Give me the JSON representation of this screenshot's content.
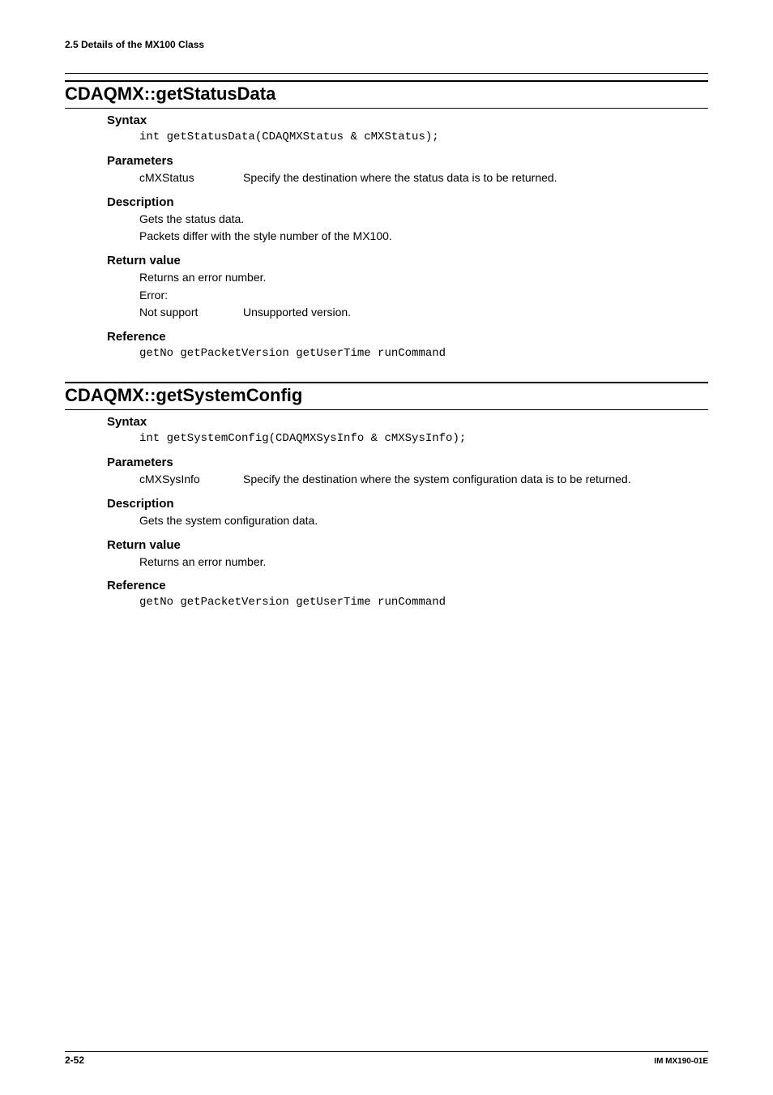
{
  "header": {
    "breadcrumb": "2.5  Details of the MX100 Class"
  },
  "sections": [
    {
      "title": "CDAQMX::getStatusData",
      "syntax": {
        "label": "Syntax",
        "code": "int getStatusData(CDAQMXStatus & cMXStatus);"
      },
      "parameters": {
        "label": "Parameters",
        "rows": [
          {
            "key": "cMXStatus",
            "val": "Specify the destination where the status data is to be returned."
          }
        ]
      },
      "description": {
        "label": "Description",
        "lines": [
          "Gets the status data.",
          "Packets differ with the style number of the MX100."
        ]
      },
      "return": {
        "label": "Return value",
        "lines": [
          "Returns an error number.",
          "Error:"
        ],
        "rows": [
          {
            "key": "Not support",
            "val": "Unsupported version."
          }
        ]
      },
      "reference": {
        "label": "Reference",
        "code": "getNo getPacketVersion getUserTime runCommand"
      }
    },
    {
      "title": "CDAQMX::getSystemConfig",
      "syntax": {
        "label": "Syntax",
        "code": "int getSystemConfig(CDAQMXSysInfo & cMXSysInfo);"
      },
      "parameters": {
        "label": "Parameters",
        "rows": [
          {
            "key": "cMXSysInfo",
            "val": "Specify the destination where the system configuration data is to be returned."
          }
        ]
      },
      "description": {
        "label": "Description",
        "lines": [
          "Gets the system configuration data."
        ]
      },
      "return": {
        "label": "Return value",
        "lines": [
          "Returns an error number."
        ]
      },
      "reference": {
        "label": "Reference",
        "code": "getNo getPacketVersion getUserTime runCommand"
      }
    }
  ],
  "footer": {
    "page": "2-52",
    "doc": "IM MX190-01E"
  }
}
